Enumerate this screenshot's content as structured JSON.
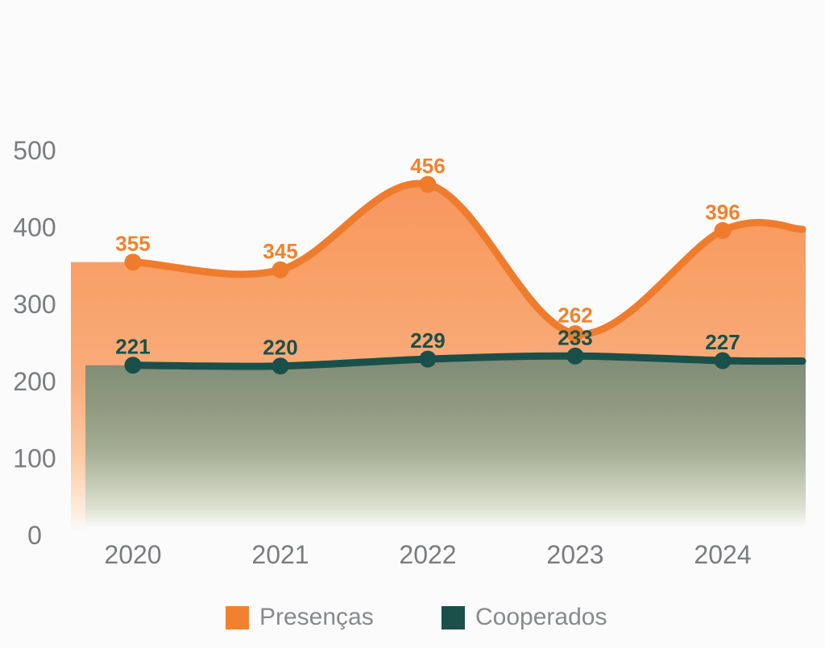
{
  "background": "#FBFBFB",
  "chart_data": {
    "type": "area",
    "title": "",
    "categories": [
      "2020",
      "2021",
      "2022",
      "2023",
      "2024"
    ],
    "series": [
      {
        "name": "Presenças",
        "values": [
          355,
          345,
          456,
          262,
          396
        ],
        "color": "#EF7C2C",
        "label_color": "#F2812E",
        "fill_stops": [
          [
            "0",
            "#F79760"
          ],
          [
            "0.25",
            "#F8A067"
          ],
          [
            "0.55",
            "#F9AC7A"
          ],
          [
            "0.78",
            "#FBCAA2"
          ],
          [
            "0.93",
            "#FDEADA"
          ],
          [
            "1",
            "#FBFBFB"
          ]
        ]
      },
      {
        "name": "Cooperados",
        "values": [
          221,
          220,
          229,
          233,
          227
        ],
        "color": "#19504A",
        "label_color": "#19504A",
        "fill_stops": [
          [
            "0",
            "#7F8B76"
          ],
          [
            "0.28",
            "#8D987F"
          ],
          [
            "0.56",
            "#A5AE94"
          ],
          [
            "0.88",
            "#DCE0D0"
          ],
          [
            "1",
            "#FBFBFB"
          ]
        ]
      }
    ],
    "y_ticks": [
      500,
      400,
      300,
      200,
      100,
      0
    ],
    "ylim": [
      0,
      500
    ],
    "grid": false,
    "legend_position": "bottom",
    "axis_text_color": "#7A7C7F",
    "legend_text_color": "#87898C"
  }
}
